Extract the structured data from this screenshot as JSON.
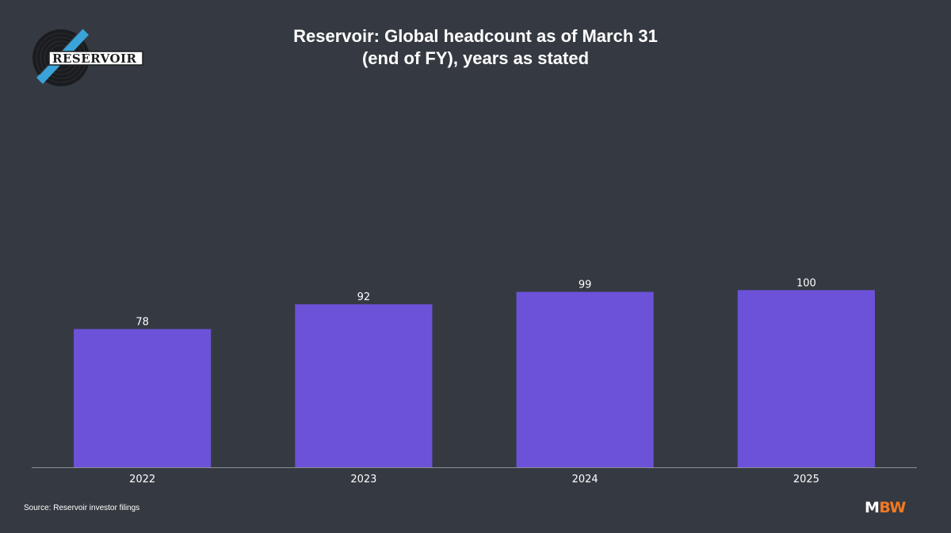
{
  "header": {
    "title_line_1": "Reservoir: Global headcount as of March 31",
    "title_line_2": "(end of FY), years as stated"
  },
  "logo": {
    "text": "RESERVOIR"
  },
  "footer": {
    "source": "Source: Reservoir investor filings",
    "brand_m": "M",
    "brand_bw": "BW"
  },
  "colors": {
    "background": "#353a42",
    "bar": "#6c52d9",
    "axis": "#8a8f96",
    "text": "#ffffff",
    "brand_accent": "#f47920",
    "logo_accent": "#3aa3d9"
  },
  "chart_data": {
    "type": "bar",
    "title": "Reservoir: Global headcount as of March 31 (end of FY), years as stated",
    "categories": [
      "2022",
      "2023",
      "2024",
      "2025"
    ],
    "values": [
      78,
      92,
      99,
      100
    ],
    "data_labels": [
      "78",
      "92",
      "99",
      "100"
    ],
    "xlabel": "",
    "ylabel": "",
    "ylim": [
      0,
      190
    ],
    "grid": false,
    "legend": "none"
  }
}
